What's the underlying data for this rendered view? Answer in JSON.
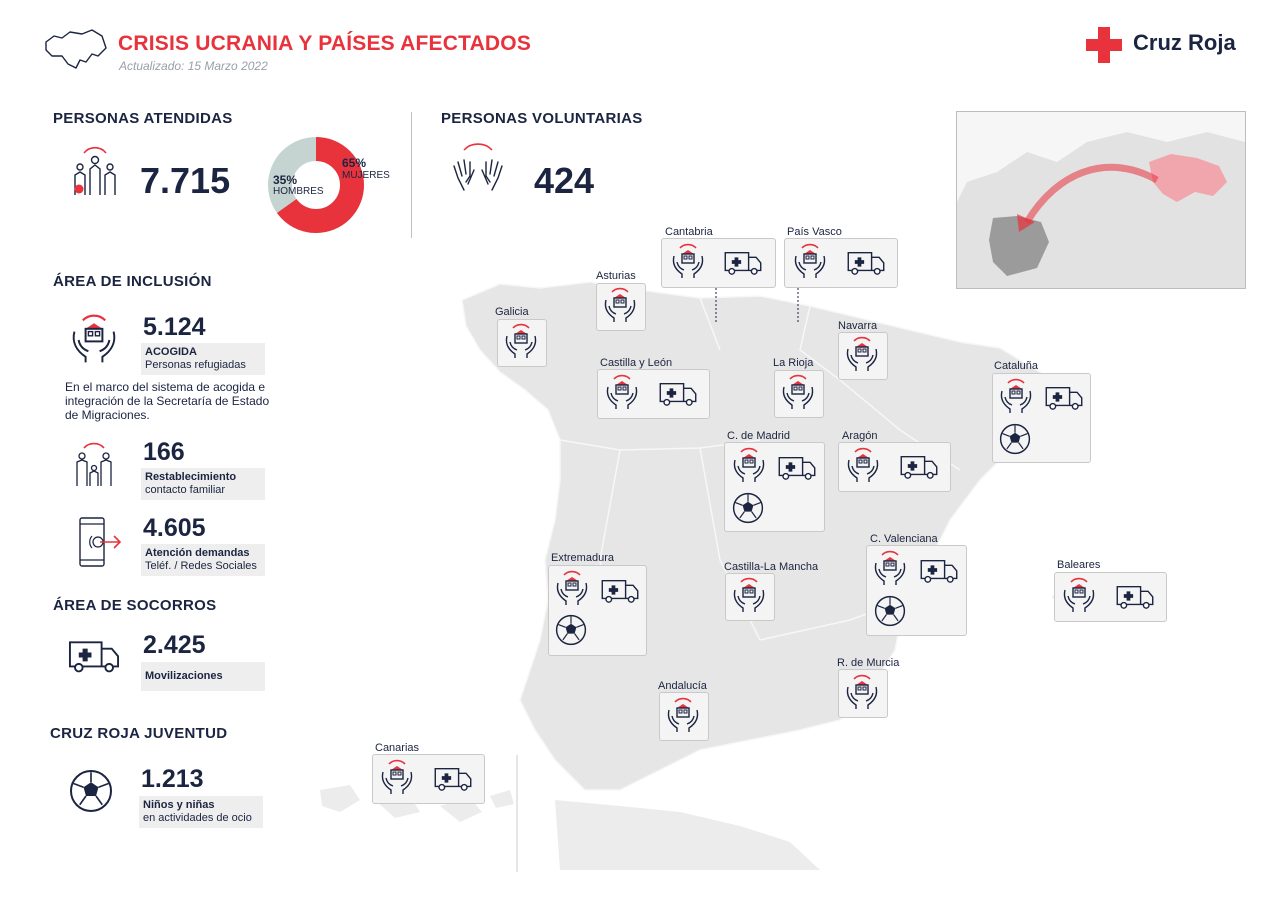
{
  "header": {
    "title": "CRISIS UCRANIA Y PAÍSES AFECTADOS",
    "updated": "Actualizado: 15 Marzo 2022",
    "brand": "Cruz Roja"
  },
  "colors": {
    "accent": "#e8323c",
    "navy": "#1b2440",
    "map": "#e6e6e6",
    "donut_gray": "#c5d3d1"
  },
  "atendidas": {
    "heading": "PERSONAS ATENDIDAS",
    "total": "7.715",
    "donut": {
      "women_pct": 65,
      "men_pct": 35,
      "women_label": "65%",
      "women_text": "MUJERES",
      "men_label": "35%",
      "men_text": "HOMBRES"
    }
  },
  "voluntarias": {
    "heading": "PERSONAS VOLUNTARIAS",
    "total": "424"
  },
  "inclusion": {
    "heading": "ÁREA DE INCLUSIÓN",
    "acogida": {
      "value": "5.124",
      "label": "ACOGIDA",
      "sub": "Personas refugiadas"
    },
    "note": "En el marco del sistema de acogida e integración de la Secretaría de Estado de Migraciones.",
    "restablecimiento": {
      "value": "166",
      "label": "Restablecimiento",
      "sub": "contacto familiar"
    },
    "atencion": {
      "value": "4.605",
      "label": "Atención demandas",
      "sub": "Teléf. / Redes Sociales"
    }
  },
  "socorros": {
    "heading": "ÁREA DE SOCORROS",
    "value": "2.425",
    "label": "Movilizaciones"
  },
  "juventud": {
    "heading": "CRUZ ROJA JUVENTUD",
    "value": "1.213",
    "label": "Niños y niñas",
    "sub": "en actividades de ocio"
  },
  "regions": [
    {
      "name": "Cantabria",
      "icons": [
        "house-hands-icon",
        "ambulance-icon"
      ]
    },
    {
      "name": "País Vasco",
      "icons": [
        "house-hands-icon",
        "ambulance-icon"
      ]
    },
    {
      "name": "Asturias",
      "icons": [
        "house-hands-icon"
      ]
    },
    {
      "name": "Galicia",
      "icons": [
        "house-hands-icon"
      ]
    },
    {
      "name": "Navarra",
      "icons": [
        "house-hands-icon"
      ]
    },
    {
      "name": "Castilla y León",
      "icons": [
        "house-hands-icon",
        "ambulance-icon"
      ]
    },
    {
      "name": "La Rioja",
      "icons": [
        "house-hands-icon"
      ]
    },
    {
      "name": "Cataluña",
      "icons": [
        "house-hands-icon",
        "ambulance-icon",
        "soccer-ball-icon"
      ]
    },
    {
      "name": "C. de Madrid",
      "icons": [
        "house-hands-icon",
        "ambulance-icon",
        "soccer-ball-icon"
      ]
    },
    {
      "name": "Aragón",
      "icons": [
        "house-hands-icon",
        "ambulance-icon"
      ]
    },
    {
      "name": "Extremadura",
      "icons": [
        "house-hands-icon",
        "ambulance-icon",
        "soccer-ball-icon"
      ]
    },
    {
      "name": "Castilla-La Mancha",
      "icons": [
        "house-hands-icon"
      ]
    },
    {
      "name": "C. Valenciana",
      "icons": [
        "house-hands-icon",
        "ambulance-icon",
        "soccer-ball-icon"
      ]
    },
    {
      "name": "Baleares",
      "icons": [
        "house-hands-icon",
        "ambulance-icon"
      ]
    },
    {
      "name": "R. de Murcia",
      "icons": [
        "house-hands-icon"
      ]
    },
    {
      "name": "Andalucía",
      "icons": [
        "house-hands-icon"
      ]
    },
    {
      "name": "Canarias",
      "icons": [
        "house-hands-icon",
        "ambulance-icon"
      ]
    }
  ]
}
